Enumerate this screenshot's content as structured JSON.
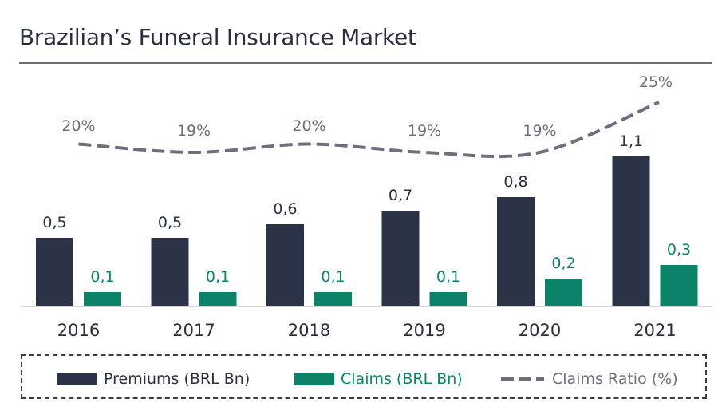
{
  "title": "Brazilian’s Funeral Insurance Market",
  "colors": {
    "premiums": "#2d3346",
    "claims": "#0c8268",
    "ratio": "#6b707c",
    "text": "#2b2f3d"
  },
  "legend": {
    "premiums": "Premiums (BRL Bn)",
    "claims": "Claims (BRL Bn)",
    "ratio": "Claims Ratio (%)"
  },
  "chart_data": {
    "type": "bar",
    "categories": [
      "2016",
      "2017",
      "2018",
      "2019",
      "2020",
      "2021"
    ],
    "series": [
      {
        "name": "Premiums (BRL Bn)",
        "type": "bar",
        "values": [
          0.5,
          0.5,
          0.6,
          0.7,
          0.8,
          1.1
        ],
        "labels": [
          "0,5",
          "0,5",
          "0,6",
          "0,7",
          "0,8",
          "1,1"
        ]
      },
      {
        "name": "Claims (BRL Bn)",
        "type": "bar",
        "values": [
          0.1,
          0.1,
          0.1,
          0.1,
          0.2,
          0.3
        ],
        "labels": [
          "0,1",
          "0,1",
          "0,1",
          "0,1",
          "0,2",
          "0,3"
        ]
      },
      {
        "name": "Claims Ratio (%)",
        "type": "line",
        "style": "dashed",
        "values": [
          20,
          19,
          20,
          19,
          19,
          25
        ],
        "labels": [
          "20%",
          "19%",
          "20%",
          "19%",
          "19%",
          "25%"
        ]
      }
    ],
    "title": "Brazilian’s Funeral Insurance Market",
    "grid": false,
    "legend_position": "bottom"
  }
}
